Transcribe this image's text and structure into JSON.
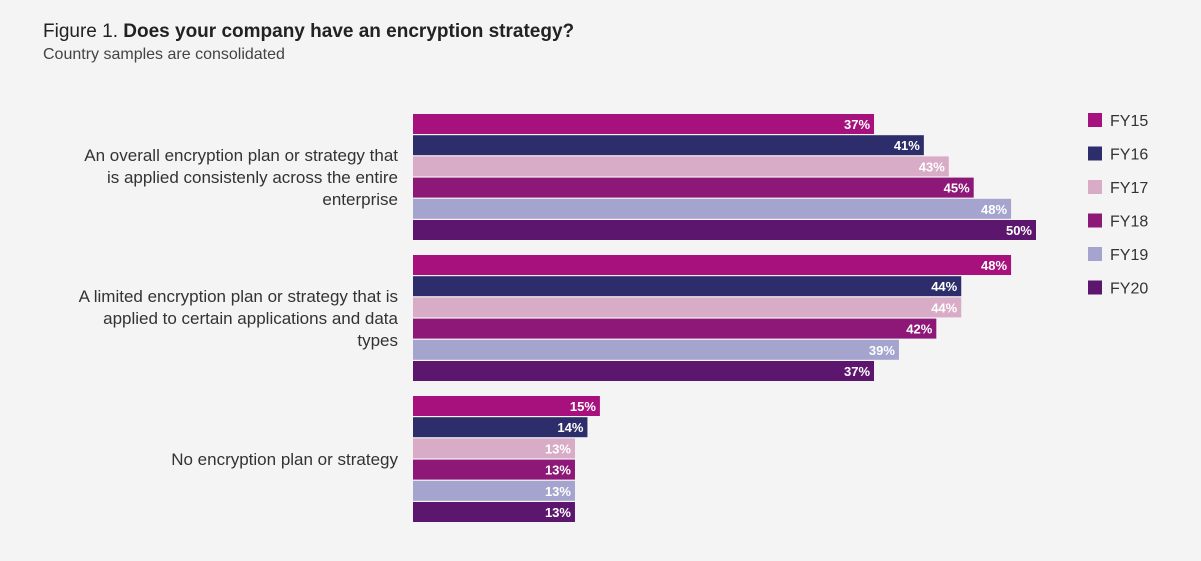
{
  "chart_data": {
    "type": "bar",
    "orientation": "horizontal",
    "title_prefix": "Figure 1.",
    "title": "Does your company have an encryption strategy?",
    "subtitle": "Country samples are consolidated",
    "categories": [
      "An overall encryption plan or strategy that is applied consistenly across the entire enterprise",
      "A limited encryption plan or strategy that is applied to certain applications and data types",
      "No encryption plan or strategy"
    ],
    "series": [
      {
        "name": "FY15",
        "color": "#a6117d",
        "values": [
          37,
          48,
          15
        ],
        "value_labels": [
          "37%",
          "48%",
          "15%"
        ]
      },
      {
        "name": "FY16",
        "color": "#2e2d6c",
        "values": [
          41,
          44,
          14
        ],
        "value_labels": [
          "41%",
          "44%",
          "14%"
        ]
      },
      {
        "name": "FY17",
        "color": "#d8abc6",
        "values": [
          43,
          44,
          13
        ],
        "value_labels": [
          "43%",
          "44%",
          "13%"
        ]
      },
      {
        "name": "FY18",
        "color": "#8d1878",
        "values": [
          45,
          42,
          13
        ],
        "value_labels": [
          "45%",
          "42%",
          "13%"
        ]
      },
      {
        "name": "FY19",
        "color": "#a4a4cf",
        "values": [
          48,
          39,
          13
        ],
        "value_labels": [
          "48%",
          "39%",
          "13%"
        ]
      },
      {
        "name": "FY20",
        "color": "#5d166e",
        "values": [
          50,
          37,
          13
        ],
        "value_labels": [
          "50%",
          "37%",
          "13%"
        ]
      }
    ],
    "legend": "right"
  }
}
